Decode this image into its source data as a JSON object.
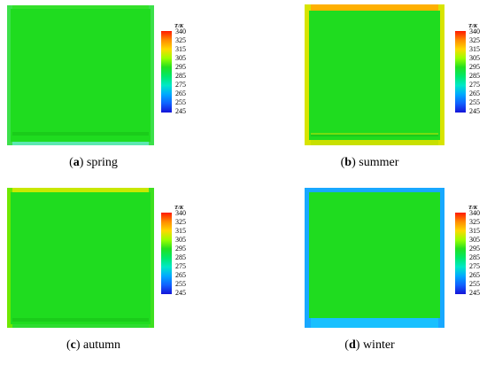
{
  "colorbar": {
    "title": "T/K",
    "ticks": [
      "340",
      "325",
      "315",
      "305",
      "295",
      "285",
      "275",
      "265",
      "255",
      "245"
    ],
    "colors": [
      "#ff1a00",
      "#ff8c00",
      "#ffd800",
      "#9bff00",
      "#22e020",
      "#00e86a",
      "#00e8c8",
      "#00a8ff",
      "#1060ff",
      "#1414d8"
    ]
  },
  "panels": [
    {
      "letter": "a",
      "label": "spring",
      "field_color": "#1fdc1f",
      "edge": {
        "top": "#33e02a",
        "left": "#3ce04a",
        "right": "#3ce04a",
        "bottom": "#5ce8b0"
      }
    },
    {
      "letter": "b",
      "label": "summer",
      "field_color": "#1fdc1f",
      "edge": {
        "top": "#ffb000",
        "left": "#d8e400",
        "right": "#d8e400",
        "bottom": "#c8e000"
      }
    },
    {
      "letter": "c",
      "label": "autumn",
      "field_color": "#1fdc1f",
      "edge": {
        "top": "#c8e800",
        "left": "#6ee800",
        "right": "#3ee020",
        "bottom": "#2edc30"
      }
    },
    {
      "letter": "d",
      "label": "winter",
      "field_color": "#1fdc1f",
      "edge": {
        "top": "#18a8ff",
        "left": "#18a8ff",
        "right": "#18a8ff",
        "bottom": "#18c0ff"
      }
    }
  ]
}
